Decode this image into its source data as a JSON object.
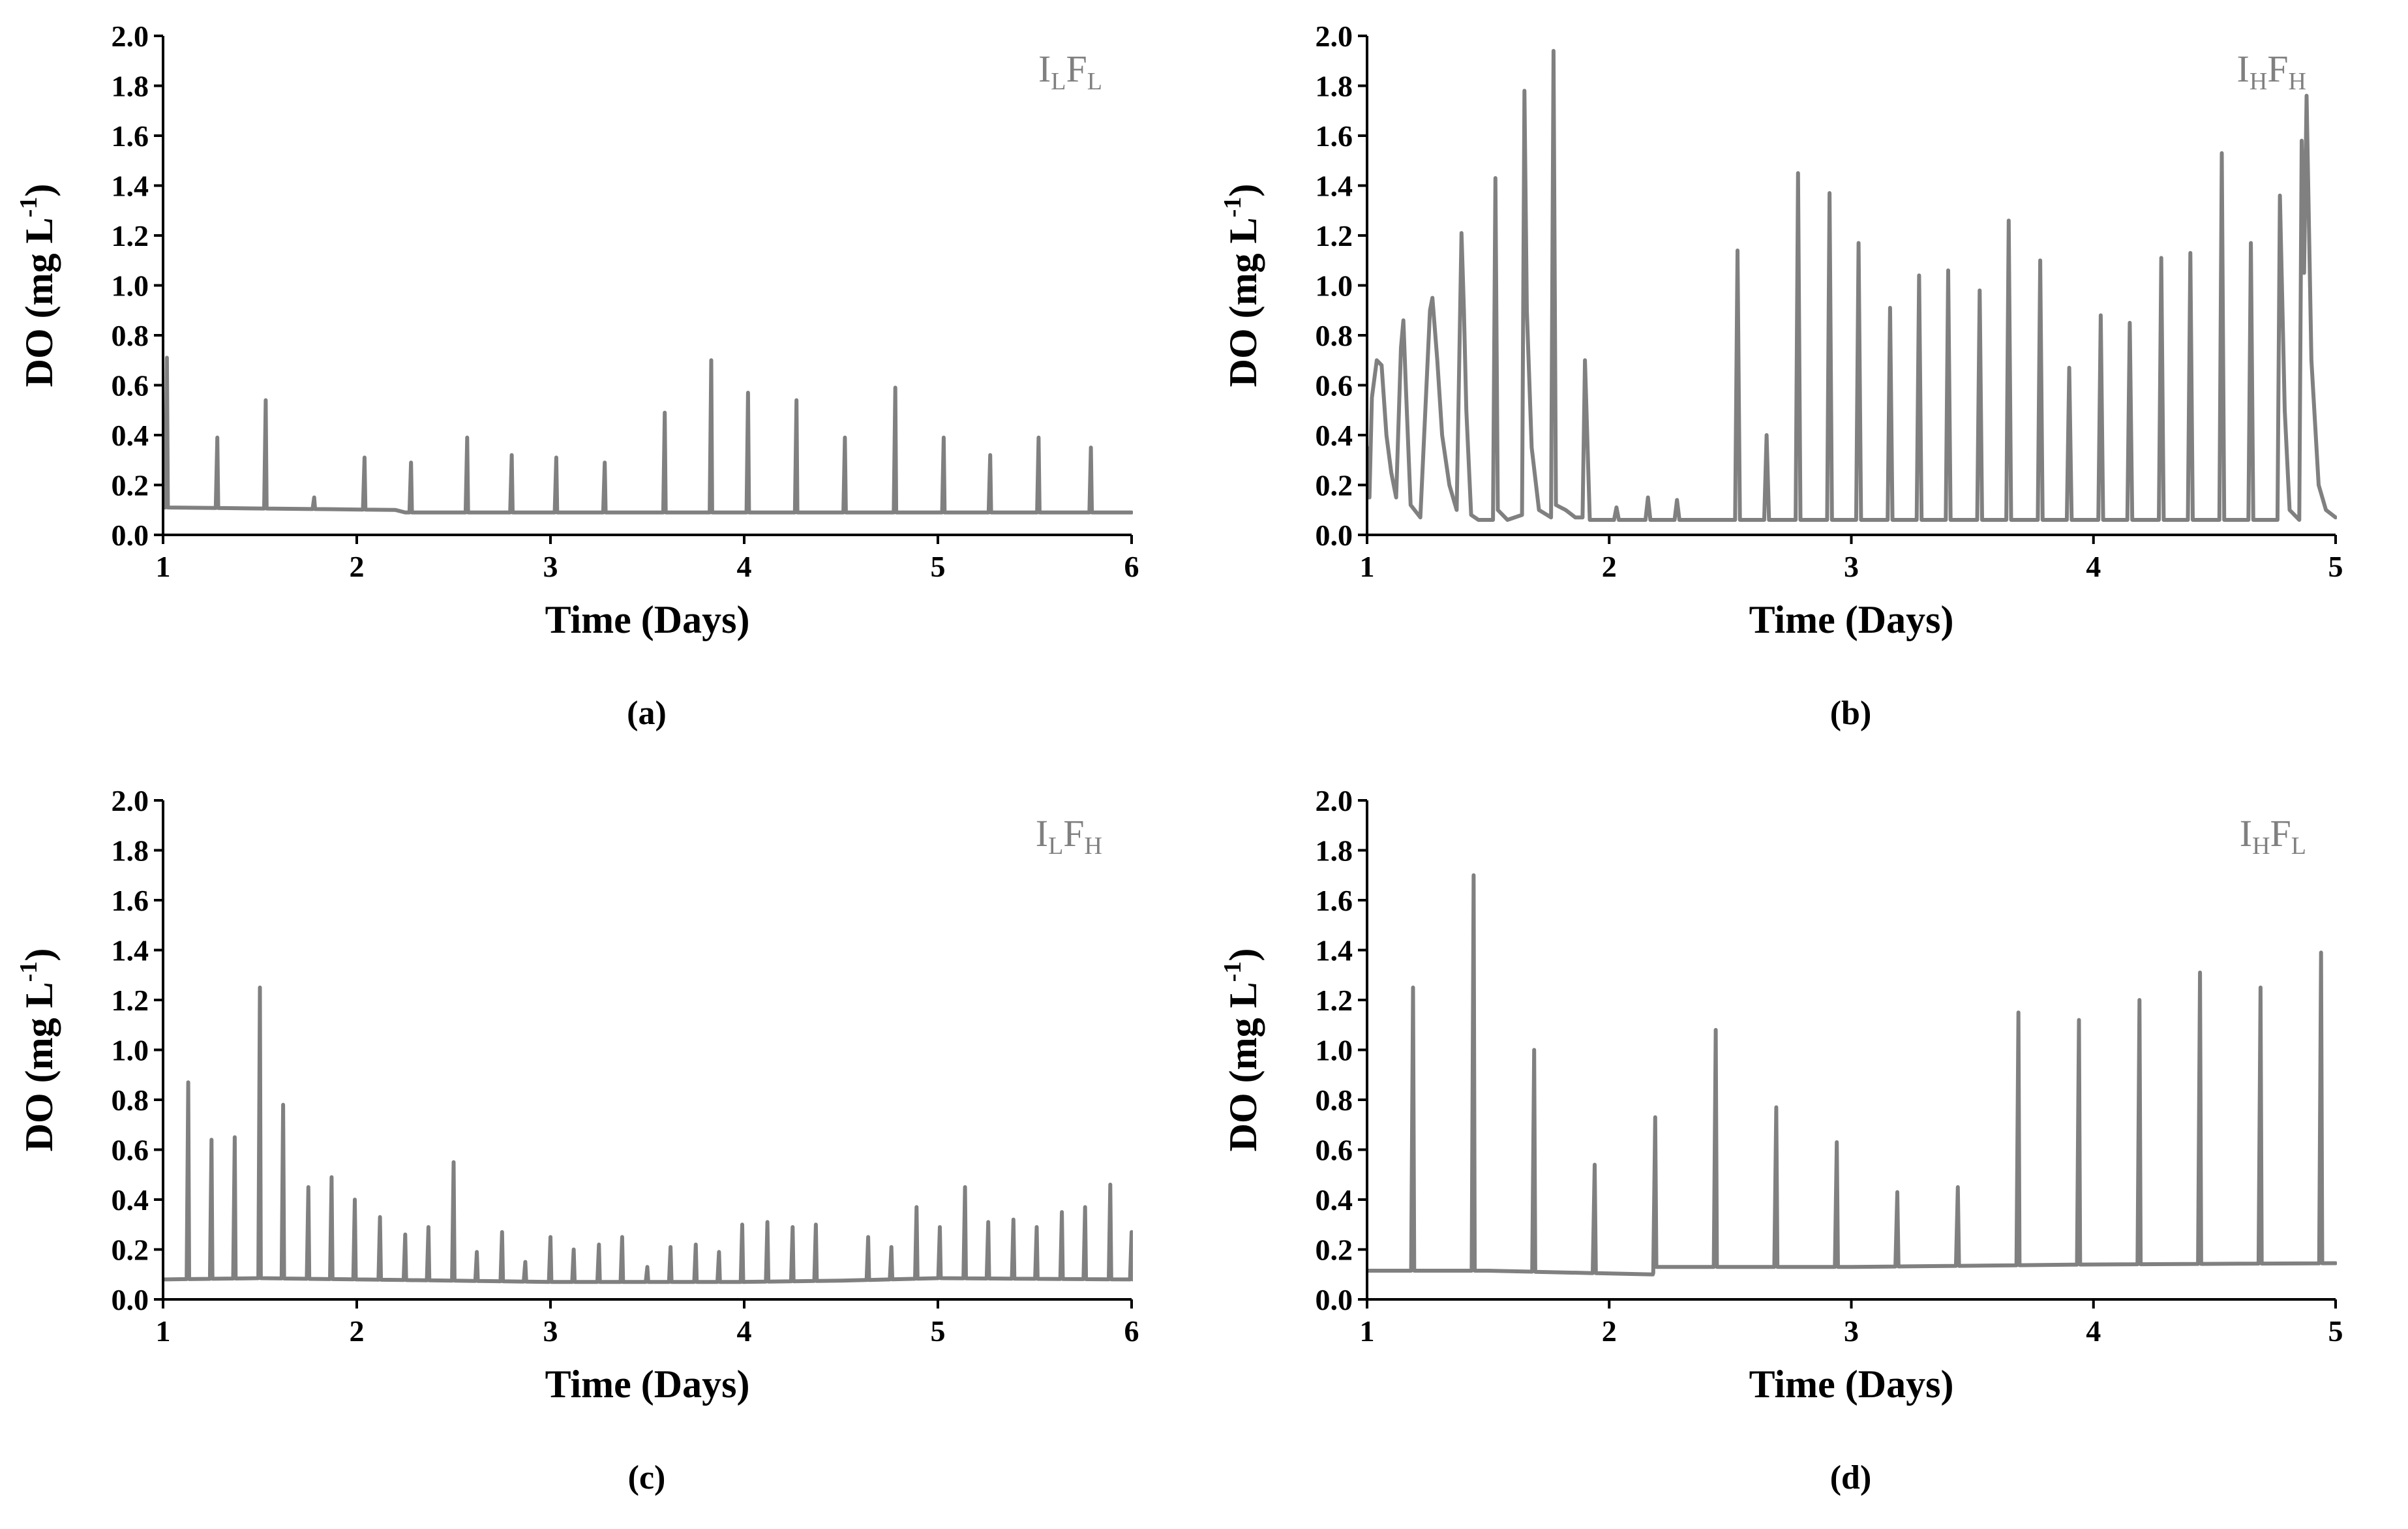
{
  "chart_data": [
    {
      "type": "line",
      "panel_label": "(a)",
      "tag": {
        "main1": "I",
        "sub1": "L",
        "main2": "F",
        "sub2": "L"
      },
      "xlabel": "Time (Days)",
      "ylabel_main": "DO (mg L",
      "ylabel_sup": "-1",
      "ylabel_close": ")",
      "xlim": [
        1,
        6
      ],
      "ylim": [
        0,
        2.0
      ],
      "xticks": [
        1,
        2,
        3,
        4,
        5,
        6
      ],
      "yticks": [
        "0.0",
        "0.2",
        "0.4",
        "0.6",
        "0.8",
        "1.0",
        "1.2",
        "1.4",
        "1.6",
        "1.8",
        "2.0"
      ],
      "series": [
        {
          "name": "DO",
          "baseline": [
            [
              1,
              0.11
            ],
            [
              2.2,
              0.1
            ],
            [
              2.25,
              0.09
            ],
            [
              6,
              0.09
            ]
          ],
          "peaks": [
            [
              1.02,
              0.71
            ],
            [
              1.28,
              0.39
            ],
            [
              1.53,
              0.54
            ],
            [
              1.78,
              0.15
            ],
            [
              2.04,
              0.31
            ],
            [
              2.28,
              0.29
            ],
            [
              2.57,
              0.39
            ],
            [
              2.8,
              0.32
            ],
            [
              3.03,
              0.31
            ],
            [
              3.28,
              0.29
            ],
            [
              3.59,
              0.49
            ],
            [
              3.83,
              0.7
            ],
            [
              4.02,
              0.57
            ],
            [
              4.27,
              0.54
            ],
            [
              4.52,
              0.39
            ],
            [
              4.78,
              0.59
            ],
            [
              5.03,
              0.39
            ],
            [
              5.27,
              0.32
            ],
            [
              5.52,
              0.39
            ],
            [
              5.79,
              0.35
            ]
          ]
        }
      ]
    },
    {
      "type": "line",
      "panel_label": "(b)",
      "tag": {
        "main1": "I",
        "sub1": "H",
        "main2": "F",
        "sub2": "H"
      },
      "xlabel": "Time (Days)",
      "ylabel_main": "DO (mg L",
      "ylabel_sup": "-1",
      "ylabel_close": ")",
      "xlim": [
        1,
        5
      ],
      "ylim": [
        0,
        2.0
      ],
      "xticks": [
        1,
        2,
        3,
        4,
        5
      ],
      "yticks": [
        "0.0",
        "0.2",
        "0.4",
        "0.6",
        "0.8",
        "1.0",
        "1.2",
        "1.4",
        "1.6",
        "1.8",
        "2.0"
      ],
      "series": [
        {
          "name": "DO",
          "points": [
            [
              1.0,
              0.35
            ],
            [
              1.01,
              0.15
            ],
            [
              1.02,
              0.55
            ],
            [
              1.04,
              0.7
            ],
            [
              1.06,
              0.68
            ],
            [
              1.08,
              0.4
            ],
            [
              1.1,
              0.25
            ],
            [
              1.12,
              0.15
            ],
            [
              1.14,
              0.75
            ],
            [
              1.15,
              0.86
            ],
            [
              1.16,
              0.6
            ],
            [
              1.18,
              0.12
            ],
            [
              1.22,
              0.07
            ],
            [
              1.26,
              0.9
            ],
            [
              1.27,
              0.95
            ],
            [
              1.29,
              0.7
            ],
            [
              1.31,
              0.4
            ],
            [
              1.34,
              0.2
            ],
            [
              1.37,
              0.1
            ],
            [
              1.39,
              1.21
            ],
            [
              1.4,
              0.9
            ],
            [
              1.41,
              0.5
            ],
            [
              1.43,
              0.08
            ],
            [
              1.46,
              0.06
            ],
            [
              1.52,
              0.06
            ],
            [
              1.53,
              1.43
            ],
            [
              1.54,
              0.1
            ],
            [
              1.58,
              0.06
            ],
            [
              1.64,
              0.08
            ],
            [
              1.65,
              1.78
            ],
            [
              1.66,
              0.9
            ],
            [
              1.68,
              0.35
            ],
            [
              1.71,
              0.1
            ],
            [
              1.76,
              0.07
            ],
            [
              1.77,
              1.94
            ],
            [
              1.78,
              0.12
            ],
            [
              1.82,
              0.1
            ],
            [
              1.86,
              0.07
            ],
            [
              1.89,
              0.07
            ],
            [
              1.9,
              0.7
            ],
            [
              1.92,
              0.06
            ],
            [
              2.02,
              0.06
            ],
            [
              2.03,
              0.11
            ],
            [
              2.04,
              0.06
            ],
            [
              2.15,
              0.06
            ],
            [
              2.16,
              0.15
            ],
            [
              2.17,
              0.06
            ],
            [
              2.27,
              0.06
            ],
            [
              2.28,
              0.14
            ],
            [
              2.29,
              0.06
            ],
            [
              2.52,
              0.06
            ],
            [
              2.53,
              1.14
            ],
            [
              2.54,
              0.06
            ],
            [
              2.64,
              0.06
            ],
            [
              2.65,
              0.4
            ],
            [
              2.66,
              0.06
            ],
            [
              2.77,
              0.06
            ],
            [
              2.78,
              1.45
            ],
            [
              2.79,
              0.06
            ],
            [
              2.9,
              0.06
            ],
            [
              2.91,
              1.37
            ],
            [
              2.92,
              0.06
            ],
            [
              3.02,
              0.06
            ],
            [
              3.03,
              1.17
            ],
            [
              3.04,
              0.06
            ],
            [
              3.15,
              0.06
            ],
            [
              3.16,
              0.91
            ],
            [
              3.17,
              0.06
            ],
            [
              3.27,
              0.06
            ],
            [
              3.28,
              1.04
            ],
            [
              3.29,
              0.06
            ],
            [
              3.39,
              0.06
            ],
            [
              3.4,
              1.06
            ],
            [
              3.41,
              0.06
            ],
            [
              3.52,
              0.06
            ],
            [
              3.53,
              0.98
            ],
            [
              3.54,
              0.06
            ],
            [
              3.64,
              0.06
            ],
            [
              3.65,
              1.26
            ],
            [
              3.66,
              0.06
            ],
            [
              3.77,
              0.06
            ],
            [
              3.78,
              1.1
            ],
            [
              3.79,
              0.06
            ],
            [
              3.89,
              0.06
            ],
            [
              3.9,
              0.67
            ],
            [
              3.91,
              0.06
            ],
            [
              4.02,
              0.06
            ],
            [
              4.03,
              0.88
            ],
            [
              4.04,
              0.06
            ],
            [
              4.14,
              0.06
            ],
            [
              4.15,
              0.85
            ],
            [
              4.16,
              0.06
            ],
            [
              4.27,
              0.06
            ],
            [
              4.28,
              1.11
            ],
            [
              4.29,
              0.06
            ],
            [
              4.39,
              0.06
            ],
            [
              4.4,
              1.13
            ],
            [
              4.41,
              0.06
            ],
            [
              4.52,
              0.06
            ],
            [
              4.53,
              1.53
            ],
            [
              4.54,
              0.06
            ],
            [
              4.64,
              0.06
            ],
            [
              4.65,
              1.17
            ],
            [
              4.66,
              0.06
            ],
            [
              4.76,
              0.06
            ],
            [
              4.77,
              1.36
            ],
            [
              4.79,
              0.5
            ],
            [
              4.81,
              0.1
            ],
            [
              4.85,
              0.06
            ],
            [
              4.86,
              1.58
            ],
            [
              4.87,
              1.05
            ],
            [
              4.88,
              1.76
            ],
            [
              4.9,
              0.7
            ],
            [
              4.93,
              0.2
            ],
            [
              4.96,
              0.1
            ],
            [
              5.0,
              0.07
            ]
          ]
        }
      ]
    },
    {
      "type": "line",
      "panel_label": "(c)",
      "tag": {
        "main1": "I",
        "sub1": "L",
        "main2": "F",
        "sub2": "H"
      },
      "xlabel": "Time (Days)",
      "ylabel_main": "DO (mg L",
      "ylabel_sup": "-1",
      "ylabel_close": ")",
      "xlim": [
        1,
        6
      ],
      "ylim": [
        0,
        2.0
      ],
      "xticks": [
        1,
        2,
        3,
        4,
        5,
        6
      ],
      "yticks": [
        "0.0",
        "0.2",
        "0.4",
        "0.6",
        "0.8",
        "1.0",
        "1.2",
        "1.4",
        "1.6",
        "1.8",
        "2.0"
      ],
      "series": [
        {
          "name": "DO",
          "baseline": [
            [
              1,
              0.08
            ],
            [
              1.5,
              0.085
            ],
            [
              2.0,
              0.08
            ],
            [
              3.0,
              0.07
            ],
            [
              4.0,
              0.07
            ],
            [
              4.5,
              0.075
            ],
            [
              5.0,
              0.085
            ],
            [
              6.0,
              0.08
            ]
          ],
          "peaks": [
            [
              1.13,
              0.87
            ],
            [
              1.25,
              0.64
            ],
            [
              1.37,
              0.65
            ],
            [
              1.5,
              1.25
            ],
            [
              1.62,
              0.78
            ],
            [
              1.75,
              0.45
            ],
            [
              1.87,
              0.49
            ],
            [
              1.99,
              0.4
            ],
            [
              2.12,
              0.33
            ],
            [
              2.25,
              0.26
            ],
            [
              2.37,
              0.29
            ],
            [
              2.5,
              0.55
            ],
            [
              2.62,
              0.19
            ],
            [
              2.75,
              0.27
            ],
            [
              2.87,
              0.15
            ],
            [
              3.0,
              0.25
            ],
            [
              3.12,
              0.2
            ],
            [
              3.25,
              0.22
            ],
            [
              3.37,
              0.25
            ],
            [
              3.5,
              0.13
            ],
            [
              3.62,
              0.21
            ],
            [
              3.75,
              0.22
            ],
            [
              3.87,
              0.19
            ],
            [
              3.99,
              0.3
            ],
            [
              4.12,
              0.31
            ],
            [
              4.25,
              0.29
            ],
            [
              4.37,
              0.3
            ],
            [
              4.64,
              0.25
            ],
            [
              4.76,
              0.21
            ],
            [
              4.89,
              0.37
            ],
            [
              5.01,
              0.29
            ],
            [
              5.14,
              0.45
            ],
            [
              5.26,
              0.31
            ],
            [
              5.39,
              0.32
            ],
            [
              5.51,
              0.29
            ],
            [
              5.64,
              0.35
            ],
            [
              5.76,
              0.37
            ],
            [
              5.89,
              0.46
            ],
            [
              6.0,
              0.27
            ]
          ]
        }
      ]
    },
    {
      "type": "line",
      "panel_label": "(d)",
      "tag": {
        "main1": "I",
        "sub1": "H",
        "main2": "F",
        "sub2": "L"
      },
      "xlabel": "Time (Days)",
      "ylabel_main": "DO (mg L",
      "ylabel_sup": "-1",
      "ylabel_close": ")",
      "xlim": [
        1,
        5
      ],
      "ylim": [
        0,
        2.0
      ],
      "xticks": [
        1,
        2,
        3,
        4,
        5
      ],
      "yticks": [
        "0.0",
        "0.2",
        "0.4",
        "0.6",
        "0.8",
        "1.0",
        "1.2",
        "1.4",
        "1.6",
        "1.8",
        "2.0"
      ],
      "series": [
        {
          "name": "DO",
          "baseline": [
            [
              1,
              0.115
            ],
            [
              1.5,
              0.115
            ],
            [
              2.18,
              0.1
            ],
            [
              2.19,
              0.13
            ],
            [
              3.0,
              0.13
            ],
            [
              4.0,
              0.14
            ],
            [
              5.0,
              0.145
            ]
          ],
          "peaks": [
            [
              1.19,
              1.25
            ],
            [
              1.44,
              1.7
            ],
            [
              1.69,
              1.0
            ],
            [
              1.94,
              0.54
            ],
            [
              2.19,
              0.73
            ],
            [
              2.44,
              1.08
            ],
            [
              2.69,
              0.77
            ],
            [
              2.94,
              0.63
            ],
            [
              3.19,
              0.43
            ],
            [
              3.44,
              0.45
            ],
            [
              3.69,
              1.15
            ],
            [
              3.94,
              1.12
            ],
            [
              4.19,
              1.2
            ],
            [
              4.44,
              1.31
            ],
            [
              4.69,
              1.25
            ],
            [
              4.94,
              1.39
            ]
          ]
        }
      ]
    }
  ]
}
